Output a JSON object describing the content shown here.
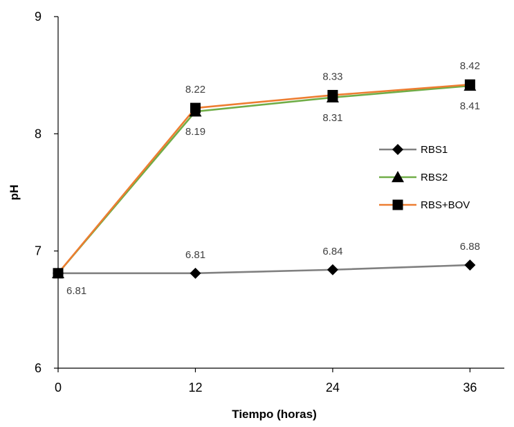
{
  "chart_data": {
    "type": "line",
    "x": [
      0,
      12,
      24,
      36
    ],
    "xlabel": "Tiempo (horas)",
    "ylabel": "pH",
    "xlim": [
      0,
      39
    ],
    "ylim": [
      6,
      9
    ],
    "x_ticks": [
      "0",
      "12",
      "24",
      "36"
    ],
    "y_ticks": [
      "6",
      "7",
      "8",
      "9"
    ],
    "grid": false,
    "legend_position": "right",
    "series": [
      {
        "name": "RBS1",
        "values": [
          6.81,
          6.81,
          6.84,
          6.88
        ],
        "color": "#808080",
        "marker": "diamond",
        "labels": [
          "6.81",
          "6.81",
          "6.84",
          "6.88"
        ],
        "label_positions": [
          "below-right",
          "above",
          "above",
          "above"
        ]
      },
      {
        "name": "RBS2",
        "values": [
          6.81,
          8.19,
          8.31,
          8.41
        ],
        "color": "#70AD47",
        "marker": "triangle",
        "labels": [
          "",
          "8.19",
          "8.31",
          "8.41"
        ],
        "label_positions": [
          "",
          "below",
          "below",
          "below"
        ]
      },
      {
        "name": "RBS+BOV",
        "values": [
          6.81,
          8.22,
          8.33,
          8.42
        ],
        "color": "#ED7D31",
        "marker": "square",
        "labels": [
          "",
          "8.22",
          "8.33",
          "8.42"
        ],
        "label_positions": [
          "",
          "above",
          "above",
          "above"
        ]
      }
    ]
  }
}
